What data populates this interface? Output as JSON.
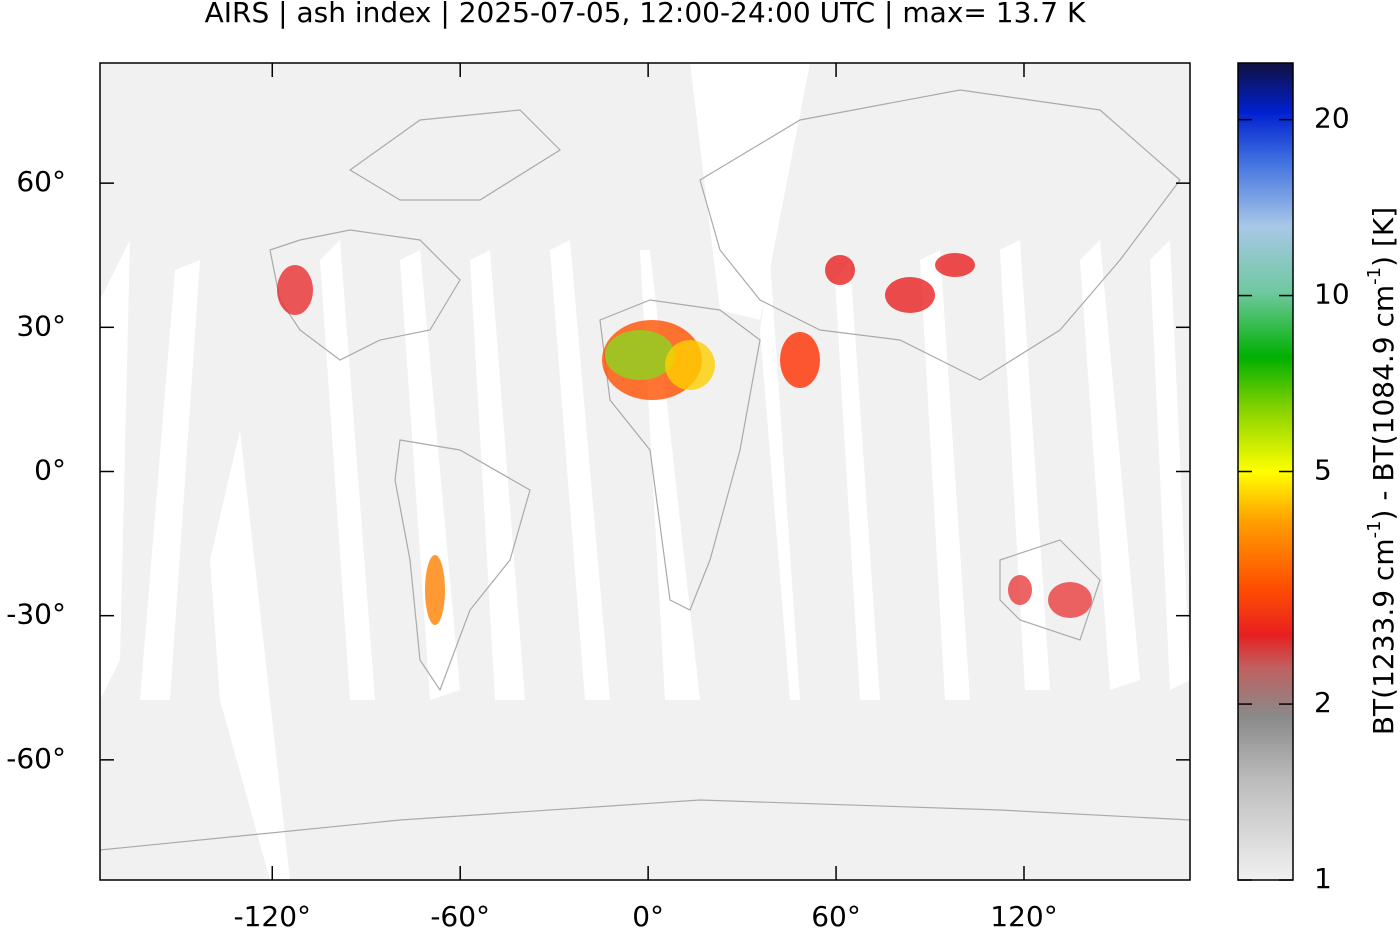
{
  "chart_data": {
    "type": "map",
    "title": "AIRS | ash index | 2025-07-05, 12:00-24:00 UTC | max= 13.7 K",
    "xlim": [
      -175,
      173
    ],
    "ylim": [
      -85,
      85
    ],
    "xticks": [
      {
        "value": -120,
        "label": "-120°"
      },
      {
        "value": -60,
        "label": "-60°"
      },
      {
        "value": 0,
        "label": "0°"
      },
      {
        "value": 60,
        "label": "60°"
      },
      {
        "value": 120,
        "label": "120°"
      }
    ],
    "yticks": [
      {
        "value": 60,
        "label": "60°"
      },
      {
        "value": 30,
        "label": "30°"
      },
      {
        "value": 0,
        "label": "0°"
      },
      {
        "value": -30,
        "label": "-30°"
      },
      {
        "value": -60,
        "label": "-60°"
      }
    ],
    "colorbar": {
      "log_scale": true,
      "lim": [
        1,
        25
      ],
      "ticks": [
        1,
        2,
        5,
        10,
        20
      ],
      "label_parts": [
        "BT(1233.9 cm",
        "-1",
        ") - BT(1084.9 cm",
        "-1",
        ") [K]"
      ]
    }
  }
}
